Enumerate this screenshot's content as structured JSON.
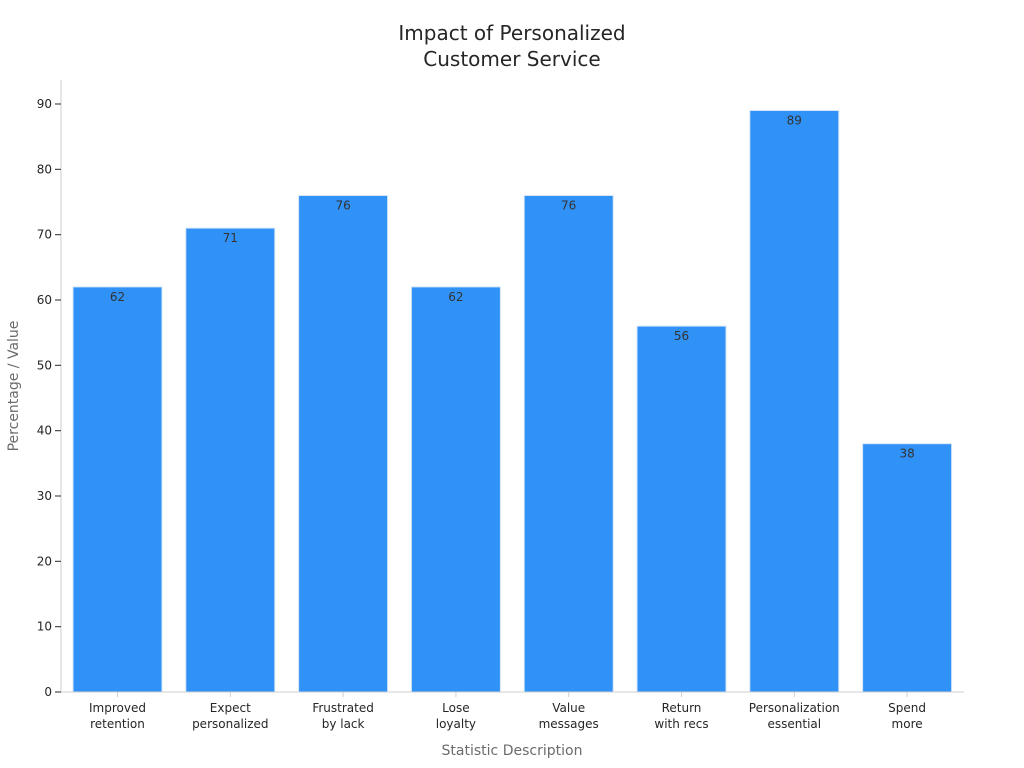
{
  "chart_data": {
    "type": "bar",
    "title": [
      "Impact of Personalized",
      "Customer Service"
    ],
    "xlabel": "Statistic Description",
    "ylabel": "Percentage / Value",
    "categories": [
      [
        "Improved",
        "retention"
      ],
      [
        "Expect",
        "personalized"
      ],
      [
        "Frustrated",
        "by lack"
      ],
      [
        "Lose",
        "loyalty"
      ],
      [
        "Value",
        "messages"
      ],
      [
        "Return",
        "with recs"
      ],
      [
        "Personalization",
        "essential"
      ],
      [
        "Spend",
        "more"
      ]
    ],
    "values": [
      62,
      71,
      76,
      62,
      76,
      56,
      89,
      38
    ],
    "ylim": [
      0,
      94
    ],
    "yticks": [
      0,
      10,
      20,
      30,
      40,
      50,
      60,
      70,
      80,
      90
    ],
    "grid": false,
    "legend": null,
    "colors": {
      "bar": "#3091f7",
      "bar_edge": "#d6e6f7",
      "axis": "#cfcfcf",
      "tick": "#262626",
      "title": "#262626",
      "axis_label": "#6b6b6b",
      "data_label": "#333333"
    }
  }
}
